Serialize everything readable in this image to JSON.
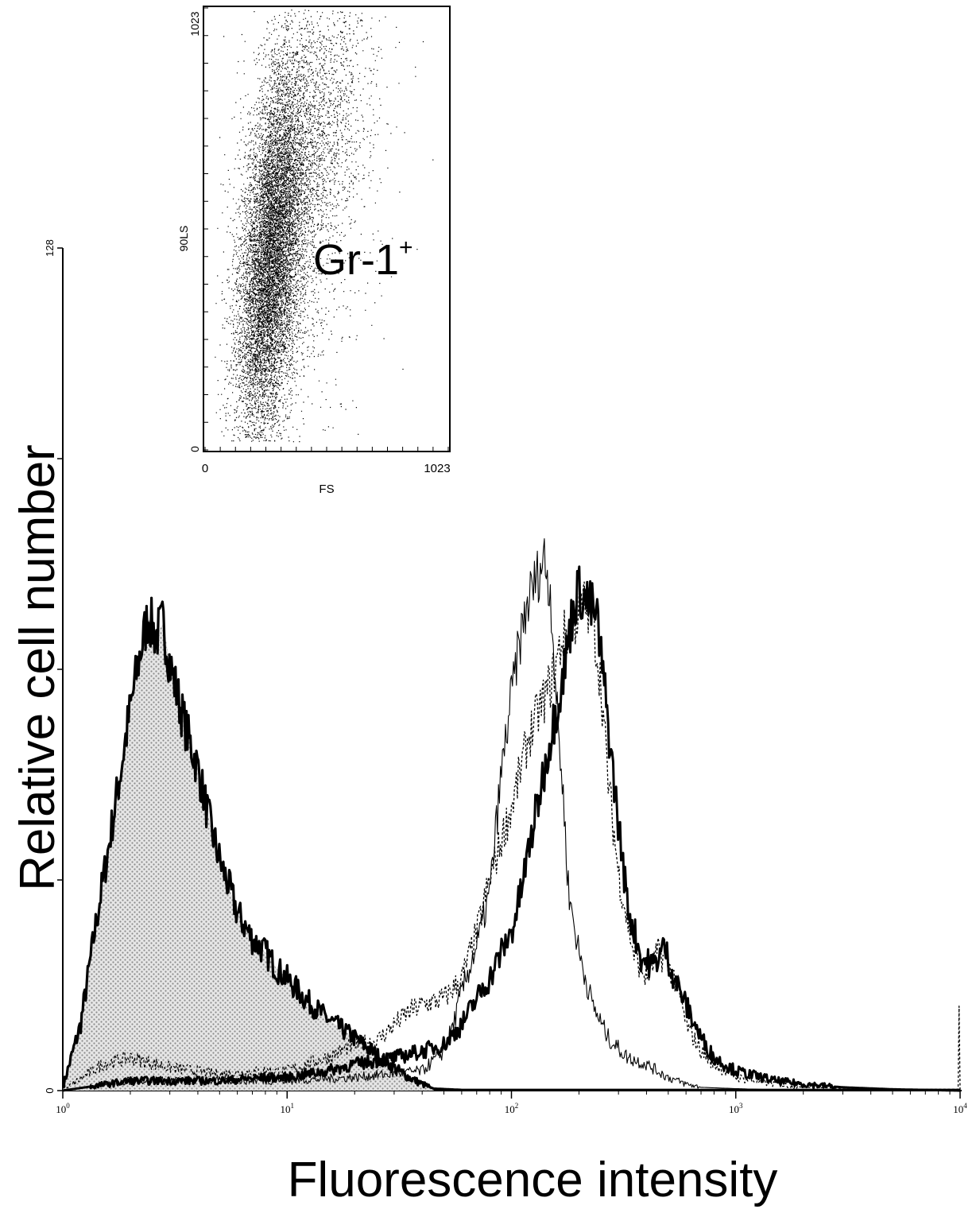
{
  "chart_data": [
    {
      "type": "area",
      "xscale": "log",
      "xlim": [
        1,
        10000
      ],
      "ylim": [
        0,
        128
      ],
      "xlabel": "Fluorescence intensity",
      "ylabel": "Relative cell number",
      "xticks": [
        {
          "v": 1,
          "b": "10",
          "e": "0"
        },
        {
          "v": 10,
          "b": "10",
          "e": "1"
        },
        {
          "v": 100,
          "b": "10",
          "e": "2"
        },
        {
          "v": 1000,
          "b": "10",
          "e": "3"
        },
        {
          "v": 10000,
          "b": "10",
          "e": "4"
        }
      ],
      "yticks": [
        {
          "v": 0,
          "label": "0"
        },
        {
          "v": 32,
          "label": ""
        },
        {
          "v": 64,
          "label": ""
        },
        {
          "v": 96,
          "label": ""
        },
        {
          "v": 128,
          "label": "128"
        }
      ],
      "series": [
        {
          "style": "filled-thick",
          "points": [
            [
              1.0,
              0.5
            ],
            [
              1.2,
              10
            ],
            [
              1.4,
              25
            ],
            [
              1.6,
              37
            ],
            [
              1.8,
              48
            ],
            [
              2.0,
              58
            ],
            [
              2.2,
              66
            ],
            [
              2.4,
              72
            ],
            [
              2.6,
              69
            ],
            [
              2.8,
              71
            ],
            [
              3.0,
              65
            ],
            [
              3.3,
              59
            ],
            [
              3.6,
              54
            ],
            [
              4.0,
              49
            ],
            [
              4.5,
              41
            ],
            [
              5.0,
              35
            ],
            [
              5.5,
              31
            ],
            [
              6.0,
              27
            ],
            [
              7.0,
              23
            ],
            [
              8.0,
              21
            ],
            [
              9.0,
              18.5
            ],
            [
              10,
              17
            ],
            [
              12,
              14
            ],
            [
              15,
              11
            ],
            [
              20,
              8
            ],
            [
              25,
              5.5
            ],
            [
              30,
              3.5
            ],
            [
              35,
              2
            ],
            [
              40,
              1
            ],
            [
              45,
              0.3
            ],
            [
              60,
              0.1
            ],
            [
              10000,
              0.1
            ]
          ]
        },
        {
          "style": "dotted",
          "points": [
            [
              1.0,
              0
            ],
            [
              1.5,
              4
            ],
            [
              2.0,
              5
            ],
            [
              3.0,
              3.5
            ],
            [
              5.0,
              2.5
            ],
            [
              8,
              3
            ],
            [
              10,
              3
            ],
            [
              15,
              5
            ],
            [
              20,
              7
            ],
            [
              25,
              7.5
            ],
            [
              30,
              10
            ],
            [
              35,
              12
            ],
            [
              40,
              13
            ],
            [
              50,
              14
            ],
            [
              60,
              17
            ],
            [
              70,
              24
            ],
            [
              80,
              32
            ],
            [
              90,
              38
            ],
            [
              100,
              43
            ],
            [
              120,
              54
            ],
            [
              150,
              62
            ],
            [
              170,
              69
            ],
            [
              190,
              71
            ],
            [
              210,
              74
            ],
            [
              230,
              72
            ],
            [
              250,
              62
            ],
            [
              270,
              47
            ],
            [
              300,
              33
            ],
            [
              350,
              21
            ],
            [
              400,
              17
            ],
            [
              450,
              21
            ],
            [
              500,
              19
            ],
            [
              550,
              16
            ],
            [
              600,
              10
            ],
            [
              700,
              6
            ],
            [
              800,
              4
            ],
            [
              1000,
              2
            ],
            [
              1500,
              1
            ],
            [
              2000,
              0.5
            ],
            [
              5000,
              0.2
            ],
            [
              9800,
              0.2
            ],
            [
              9900,
              12
            ],
            [
              9950,
              0.3
            ],
            [
              10000,
              0
            ]
          ]
        },
        {
          "style": "thin",
          "points": [
            [
              1.0,
              0
            ],
            [
              2,
              1.5
            ],
            [
              5,
              1.5
            ],
            [
              10,
              1.5
            ],
            [
              20,
              2
            ],
            [
              40,
              3
            ],
            [
              50,
              6
            ],
            [
              55,
              10
            ],
            [
              60,
              15
            ],
            [
              70,
              22
            ],
            [
              80,
              30
            ],
            [
              90,
              48
            ],
            [
              100,
              60
            ],
            [
              110,
              69
            ],
            [
              120,
              75
            ],
            [
              130,
              78
            ],
            [
              140,
              81
            ],
            [
              150,
              75
            ],
            [
              160,
              57
            ],
            [
              170,
              45
            ],
            [
              180,
              30
            ],
            [
              200,
              21
            ],
            [
              230,
              13
            ],
            [
              270,
              8
            ],
            [
              330,
              5
            ],
            [
              400,
              4
            ],
            [
              500,
              2
            ],
            [
              600,
              1
            ],
            [
              700,
              0.5
            ],
            [
              1000,
              0.3
            ],
            [
              2000,
              0
            ],
            [
              10000,
              0
            ]
          ]
        },
        {
          "style": "thick",
          "points": [
            [
              1.0,
              0
            ],
            [
              2,
              1.5
            ],
            [
              5,
              1.5
            ],
            [
              8,
              2
            ],
            [
              10,
              2
            ],
            [
              15,
              3
            ],
            [
              20,
              4
            ],
            [
              30,
              5
            ],
            [
              40,
              6
            ],
            [
              50,
              7
            ],
            [
              60,
              10
            ],
            [
              70,
              14
            ],
            [
              80,
              17
            ],
            [
              90,
              21
            ],
            [
              100,
              24
            ],
            [
              110,
              30
            ],
            [
              120,
              37
            ],
            [
              130,
              43
            ],
            [
              150,
              54
            ],
            [
              170,
              63
            ],
            [
              190,
              74
            ],
            [
              200,
              76
            ],
            [
              220,
              74
            ],
            [
              240,
              72
            ],
            [
              260,
              61
            ],
            [
              290,
              45
            ],
            [
              330,
              28
            ],
            [
              380,
              20
            ],
            [
              430,
              19
            ],
            [
              480,
              22
            ],
            [
              520,
              18
            ],
            [
              600,
              13
            ],
            [
              700,
              8
            ],
            [
              800,
              5
            ],
            [
              1000,
              3
            ],
            [
              1500,
              1.5
            ],
            [
              2000,
              1
            ],
            [
              3000,
              0.5
            ],
            [
              5000,
              0.2
            ],
            [
              10000,
              0
            ]
          ]
        }
      ]
    },
    {
      "type": "scatter",
      "xlabel": "FS",
      "ylabel": "90LS",
      "xlim": [
        0,
        1023
      ],
      "ylim": [
        0,
        1023
      ],
      "xtick_labels": [
        "0",
        "1023"
      ],
      "ytick_labels": [
        "0",
        "1023"
      ],
      "population_label": "Gr-1",
      "population_sup": "+",
      "clusters": [
        {
          "n": 9000,
          "x": 280,
          "y": 450,
          "sx": 70,
          "sy": 220,
          "rho": 0.45
        },
        {
          "n": 2500,
          "x": 430,
          "y": 680,
          "sx": 130,
          "sy": 230,
          "rho": 0.5
        },
        {
          "n": 700,
          "x": 380,
          "y": 450,
          "sx": 190,
          "sy": 300,
          "rho": 0.2
        }
      ]
    }
  ]
}
